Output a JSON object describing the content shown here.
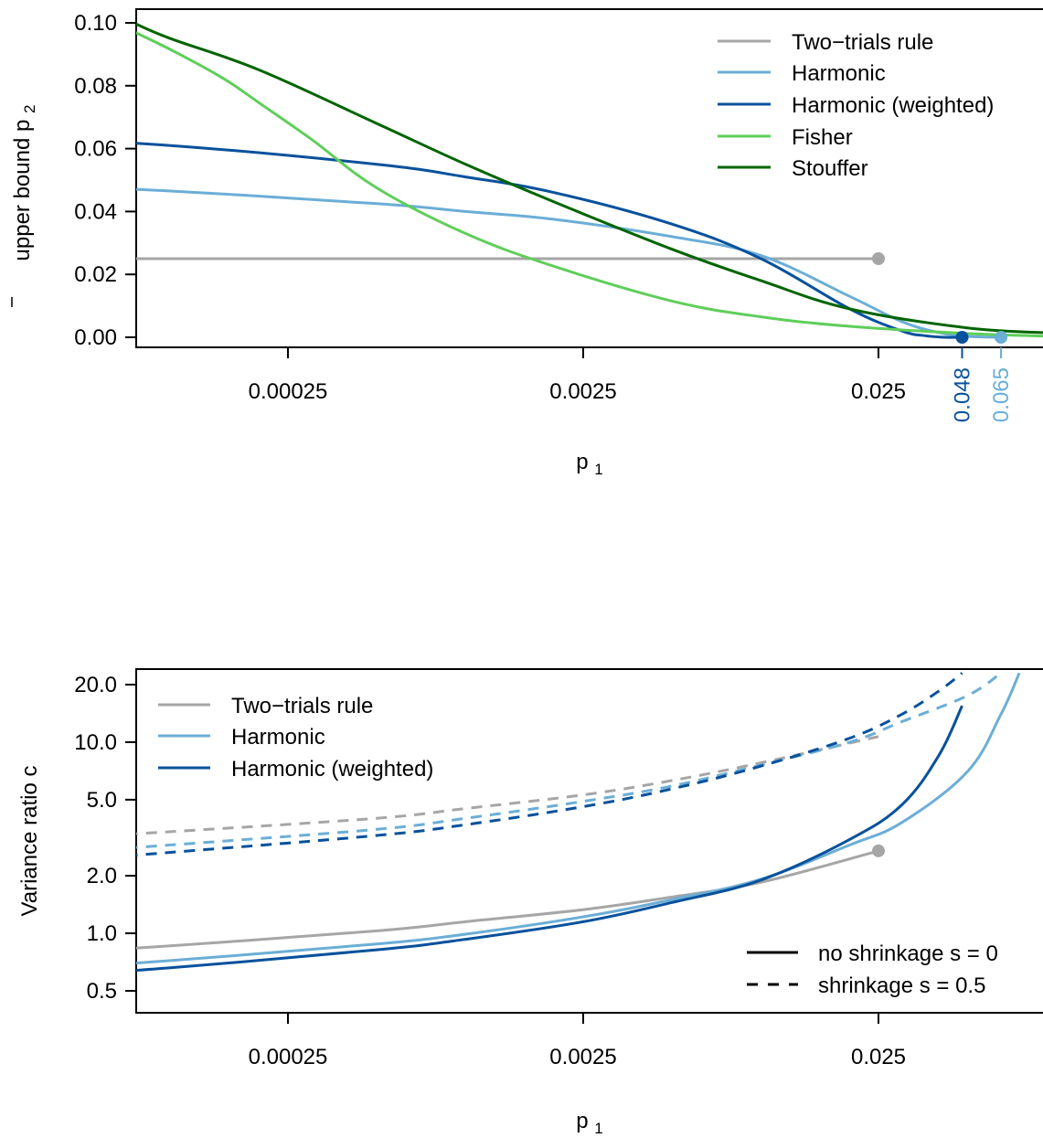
{
  "colors": {
    "two_trials": "#a6a6a6",
    "harmonic": "#6baed6",
    "harmonic_weighted": "#08519c",
    "fisher": "#5fce5a",
    "stouffer": "#006400",
    "black": "#000000"
  },
  "chart_data": [
    {
      "type": "line",
      "title": "",
      "xlabel": "p",
      "xlabel_subscript": "1",
      "ylabel": "upper bound p",
      "ylabel_subscript": "2",
      "x_scale": "log",
      "xlim": [
        3e-05,
        0.1
      ],
      "ylim": [
        0,
        0.1
      ],
      "x_ticks": [
        {
          "value": 0.00025,
          "label": "0.00025"
        },
        {
          "value": 0.0025,
          "label": "0.0025"
        },
        {
          "value": 0.025,
          "label": "0.025"
        }
      ],
      "y_ticks": [
        {
          "value": 0.0,
          "label": "0.00"
        },
        {
          "value": 0.02,
          "label": "0.02"
        },
        {
          "value": 0.04,
          "label": "0.04"
        },
        {
          "value": 0.06,
          "label": "0.06"
        },
        {
          "value": 0.08,
          "label": "0.08"
        },
        {
          "value": 0.1,
          "label": "0.10"
        }
      ],
      "legend_position": "top-right",
      "series": [
        {
          "name": "Two−trials rule",
          "color_key": "two_trials",
          "dash": "solid",
          "x": [
            2.5e-05,
            0.025
          ],
          "y": [
            0.025,
            0.025
          ],
          "end_marker": {
            "x": 0.025,
            "y": 0.025
          }
        },
        {
          "name": "Harmonic",
          "color_key": "harmonic",
          "dash": "solid",
          "x": [
            2.5e-05,
            0.0001,
            0.0005,
            0.001,
            0.002,
            0.005,
            0.01,
            0.02,
            0.03,
            0.04,
            0.05,
            0.065
          ],
          "y": [
            0.049,
            0.0465,
            0.0425,
            0.04,
            0.0375,
            0.032,
            0.026,
            0.013,
            0.005,
            0.0015,
            0.0003,
            0.0
          ]
        },
        {
          "name": "Harmonic (weighted)",
          "color_key": "harmonic_weighted",
          "dash": "solid",
          "x": [
            2.5e-05,
            0.0001,
            0.0005,
            0.001,
            0.002,
            0.005,
            0.01,
            0.02,
            0.03,
            0.036,
            0.042,
            0.048
          ],
          "y": [
            0.064,
            0.061,
            0.055,
            0.051,
            0.046,
            0.036,
            0.025,
            0.009,
            0.002,
            0.0005,
            0.0,
            0.0
          ]
        },
        {
          "name": "Fisher",
          "color_key": "fisher",
          "dash": "solid",
          "x": [
            6.5e-05,
            0.0001,
            0.00015,
            0.0002,
            0.0003,
            0.0005,
            0.001,
            0.002,
            0.005,
            0.01,
            0.02,
            0.05,
            0.1
          ],
          "y": [
            0.1,
            0.0915,
            0.0825,
            0.0745,
            0.063,
            0.0475,
            0.033,
            0.0225,
            0.0115,
            0.0065,
            0.0035,
            0.0012,
            0.0003
          ]
        },
        {
          "name": "Stouffer",
          "color_key": "stouffer",
          "dash": "solid",
          "x": [
            7.5e-05,
            0.0001,
            0.0002,
            0.0005,
            0.001,
            0.002,
            0.005,
            0.01,
            0.02,
            0.05,
            0.1
          ],
          "y": [
            0.1,
            0.095,
            0.085,
            0.068,
            0.055,
            0.043,
            0.028,
            0.018,
            0.009,
            0.003,
            0.0013
          ]
        }
      ],
      "points": [
        {
          "x": 0.048,
          "y": 0.0,
          "color_key": "harmonic_weighted",
          "label": "0.048"
        },
        {
          "x": 0.065,
          "y": 0.0,
          "color_key": "harmonic",
          "label": "0.065"
        }
      ]
    },
    {
      "type": "line",
      "title": "",
      "xlabel": "p",
      "xlabel_subscript": "1",
      "ylabel": "Variance ratio c",
      "x_scale": "log",
      "y_scale": "log",
      "xlim": [
        3e-05,
        0.1
      ],
      "ylim": [
        0.4,
        23
      ],
      "x_ticks": [
        {
          "value": 0.00025,
          "label": "0.00025"
        },
        {
          "value": 0.0025,
          "label": "0.0025"
        },
        {
          "value": 0.025,
          "label": "0.025"
        }
      ],
      "y_ticks": [
        {
          "value": 0.5,
          "label": "0.5"
        },
        {
          "value": 1.0,
          "label": "1.0"
        },
        {
          "value": 2.0,
          "label": "2.0"
        },
        {
          "value": 5.0,
          "label": "5.0"
        },
        {
          "value": 10.0,
          "label": "10.0"
        },
        {
          "value": 20.0,
          "label": "20.0"
        }
      ],
      "legend_position": "top-left",
      "line_legend_position": "bottom-right",
      "series": [
        {
          "name": "Two−trials rule",
          "color_key": "two_trials",
          "dash": "solid",
          "x": [
            2.5e-05,
            0.0001,
            0.0005,
            0.001,
            0.0025,
            0.005,
            0.01,
            0.025
          ],
          "y": [
            0.75,
            0.86,
            1.03,
            1.15,
            1.33,
            1.55,
            1.85,
            2.7
          ],
          "end_marker": {
            "x": 0.025,
            "y": 2.7
          }
        },
        {
          "name": "Harmonic",
          "color_key": "harmonic",
          "dash": "solid",
          "x": [
            2.5e-05,
            0.0001,
            0.0005,
            0.001,
            0.0025,
            0.005,
            0.01,
            0.02,
            0.03,
            0.05,
            0.065,
            0.075
          ],
          "y": [
            0.62,
            0.72,
            0.88,
            0.99,
            1.22,
            1.5,
            1.92,
            2.9,
            3.8,
            7.0,
            14.0,
            23.0
          ]
        },
        {
          "name": "Harmonic (weighted)",
          "color_key": "harmonic_weighted",
          "dash": "solid",
          "x": [
            2.5e-05,
            0.0001,
            0.0005,
            0.001,
            0.0025,
            0.005,
            0.01,
            0.02,
            0.03,
            0.04,
            0.048
          ],
          "y": [
            0.57,
            0.66,
            0.82,
            0.93,
            1.15,
            1.45,
            1.9,
            3.1,
            4.7,
            8.5,
            15.5
          ]
        },
        {
          "name": "Two−trials rule (shrinkage)",
          "color_key": "two_trials",
          "dash": "dashed",
          "x": [
            2.5e-05,
            0.0001,
            0.0005,
            0.001,
            0.0025,
            0.005,
            0.01,
            0.025
          ],
          "y": [
            3.0,
            3.4,
            4.0,
            4.5,
            5.3,
            6.3,
            7.8,
            10.7
          ]
        },
        {
          "name": "Harmonic (shrinkage)",
          "color_key": "harmonic",
          "dash": "dashed",
          "x": [
            2.5e-05,
            0.0001,
            0.0005,
            0.001,
            0.0025,
            0.005,
            0.01,
            0.02,
            0.03,
            0.05,
            0.065
          ],
          "y": [
            2.5,
            2.9,
            3.5,
            4.0,
            4.9,
            5.9,
            7.6,
            10.0,
            12.8,
            17.5,
            23.0
          ]
        },
        {
          "name": "Harmonic (weighted, shrinkage)",
          "color_key": "harmonic_weighted",
          "dash": "dashed",
          "x": [
            2.5e-05,
            0.0001,
            0.0005,
            0.001,
            0.0025,
            0.005,
            0.01,
            0.02,
            0.03,
            0.04,
            0.048
          ],
          "y": [
            2.25,
            2.65,
            3.25,
            3.7,
            4.6,
            5.7,
            7.5,
            10.5,
            14.0,
            18.5,
            23.0
          ]
        }
      ],
      "legend_entries": [
        {
          "name": "Two−trials rule",
          "color_key": "two_trials"
        },
        {
          "name": "Harmonic",
          "color_key": "harmonic"
        },
        {
          "name": "Harmonic (weighted)",
          "color_key": "harmonic_weighted"
        }
      ],
      "line_legend": [
        {
          "name": "no shrinkage s = 0",
          "dash": "solid"
        },
        {
          "name": "shrinkage s = 0.5",
          "dash": "dashed"
        }
      ]
    }
  ]
}
